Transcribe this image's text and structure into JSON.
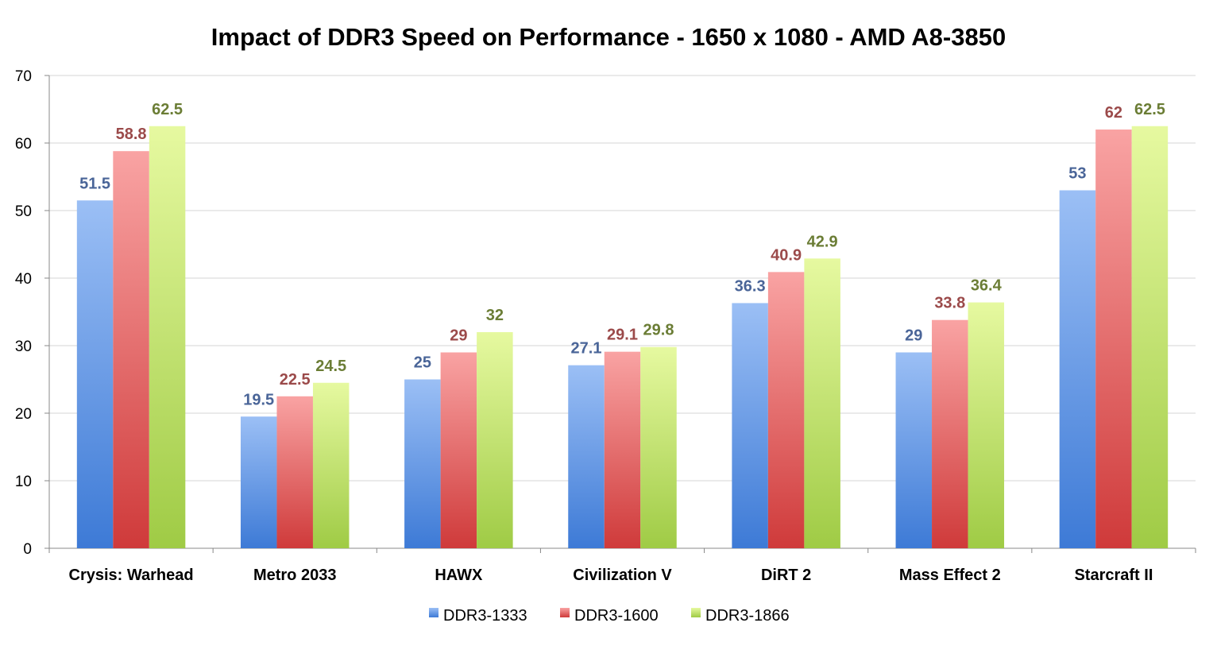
{
  "chart_data": {
    "type": "bar",
    "title": "Impact of DDR3 Speed on Performance - 1650 x 1080 - AMD A8-3850",
    "xlabel": "",
    "ylabel": "",
    "ylim": [
      0,
      70
    ],
    "yticks": [
      "0",
      "10",
      "20",
      "30",
      "40",
      "50",
      "60",
      "70"
    ],
    "grid": true,
    "legend_position": "bottom",
    "categories": [
      "Crysis: Warhead",
      "Metro 2033",
      "HAWX",
      "Civilization V",
      "DiRT 2",
      "Mass Effect 2",
      "Starcraft II"
    ],
    "series": [
      {
        "name": "DDR3-1333",
        "values": [
          51.5,
          19.5,
          25,
          27.1,
          36.3,
          29,
          53
        ],
        "labels": [
          "51.5",
          "19.5",
          "25",
          "27.1",
          "36.3",
          "29",
          "53"
        ],
        "color_top": "#9bbff5",
        "color_bottom": "#3d7ad6",
        "label_color": "#4a6598"
      },
      {
        "name": "DDR3-1600",
        "values": [
          58.8,
          22.5,
          29,
          29.1,
          40.9,
          33.8,
          62
        ],
        "labels": [
          "58.8",
          "22.5",
          "29",
          "29.1",
          "40.9",
          "33.8",
          "62"
        ],
        "color_top": "#f9a3a3",
        "color_bottom": "#cf3a3a",
        "label_color": "#9b4a4a"
      },
      {
        "name": "DDR3-1866",
        "values": [
          62.5,
          24.5,
          32,
          29.8,
          42.9,
          36.4,
          62.5
        ],
        "labels": [
          "62.5",
          "24.5",
          "32",
          "29.8",
          "42.9",
          "36.4",
          "62.5"
        ],
        "color_top": "#e6f9a0",
        "color_bottom": "#9fcb45",
        "label_color": "#6b7d35"
      }
    ]
  }
}
